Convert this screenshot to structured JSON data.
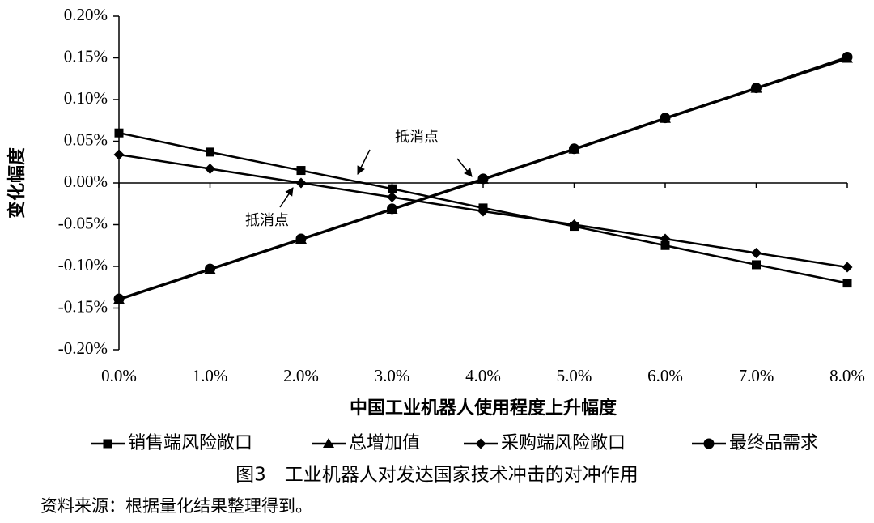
{
  "chart_data": {
    "type": "line",
    "ylabel": "变化幅度",
    "xlabel": "中国工业机器人使用程度上升幅度",
    "caption": "图3　工业机器人对发达国家技术冲击的对冲作用",
    "source": "资料来源：根据量化结果整理得到。",
    "annotations": [
      "抵消点",
      "抵消点"
    ],
    "x": [
      0,
      1,
      2,
      3,
      4,
      5,
      6,
      7,
      8
    ],
    "xlim": [
      0,
      8
    ],
    "xticks": [
      {
        "value": 0,
        "label": "0.0%"
      },
      {
        "value": 1,
        "label": "1.0%"
      },
      {
        "value": 2,
        "label": "2.0%"
      },
      {
        "value": 3,
        "label": "3.0%"
      },
      {
        "value": 4,
        "label": "4.0%"
      },
      {
        "value": 5,
        "label": "5.0%"
      },
      {
        "value": 6,
        "label": "6.0%"
      },
      {
        "value": 7,
        "label": "7.0%"
      },
      {
        "value": 8,
        "label": "8.0%"
      }
    ],
    "ylim": [
      -0.2,
      0.2
    ],
    "yticks": [
      {
        "value": 0.2,
        "label": "0.20%"
      },
      {
        "value": 0.15,
        "label": "0.15%"
      },
      {
        "value": 0.1,
        "label": "0.10%"
      },
      {
        "value": 0.05,
        "label": "0.05%"
      },
      {
        "value": 0,
        "label": "0.00%"
      },
      {
        "value": -0.05,
        "label": "-0.05%"
      },
      {
        "value": -0.1,
        "label": "-0.10%"
      },
      {
        "value": -0.15,
        "label": "-0.15%"
      },
      {
        "value": -0.2,
        "label": "-0.20%"
      }
    ],
    "series": [
      {
        "name": "销售端风险敞口",
        "color": "#000000",
        "marker": "square",
        "values": [
          0.06,
          0.037,
          0.015,
          -0.007,
          -0.03,
          -0.052,
          -0.075,
          -0.098,
          -0.12
        ]
      },
      {
        "name": "总增加值",
        "color": "#000000",
        "marker": "triangle",
        "values": [
          -0.14,
          -0.104,
          -0.068,
          -0.032,
          0.004,
          0.04,
          0.077,
          0.113,
          0.149
        ]
      },
      {
        "name": "采购端风险敞口",
        "color": "#000000",
        "marker": "diamond",
        "values": [
          0.034,
          0.017,
          0.0,
          -0.017,
          -0.034,
          -0.05,
          -0.067,
          -0.084,
          -0.101
        ]
      },
      {
        "name": "最终品需求",
        "color": "#000000",
        "marker": "circle",
        "values": [
          -0.139,
          -0.103,
          -0.067,
          -0.031,
          0.005,
          0.041,
          0.078,
          0.114,
          0.151
        ]
      }
    ]
  }
}
